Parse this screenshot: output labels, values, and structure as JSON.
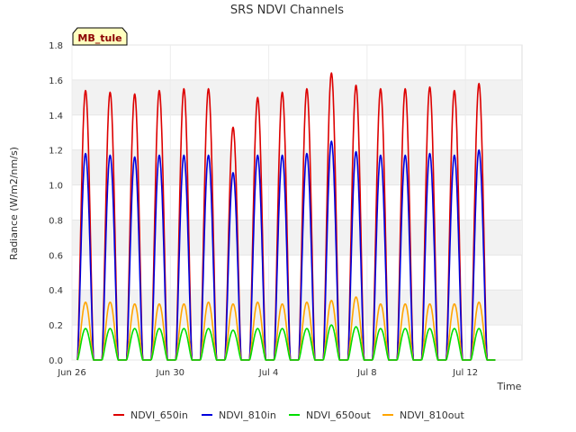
{
  "chart_data": {
    "type": "line",
    "title": "SRS NDVI Channels",
    "xlabel": "Time",
    "ylabel": "Radiance (W/m2/nm/s)",
    "badge": "MB_tule",
    "xlim": [
      0,
      18.3
    ],
    "ylim": [
      0,
      1.8
    ],
    "yticks": [
      "0.0",
      "0.2",
      "0.4",
      "0.6",
      "0.8",
      "1.0",
      "1.2",
      "1.4",
      "1.6",
      "1.8"
    ],
    "xticks": [
      {
        "label": "Jun 26",
        "day": 0
      },
      {
        "label": "Jun 30",
        "day": 4
      },
      {
        "label": "Jul 4",
        "day": 8
      },
      {
        "label": "Jul 8",
        "day": 12
      },
      {
        "label": "Jul 12",
        "day": 16
      }
    ],
    "x_unit": "days after Jun 26",
    "grid": true,
    "legend_position": "bottom",
    "series": [
      {
        "name": "NDVI_650in",
        "color": "#dd0000",
        "daily_peaks": [
          1.54,
          1.53,
          1.52,
          1.54,
          1.55,
          1.55,
          1.33,
          1.5,
          1.53,
          1.55,
          1.64,
          1.57,
          1.55,
          1.55,
          1.56,
          1.54,
          1.58
        ]
      },
      {
        "name": "NDVI_810in",
        "color": "#0000dd",
        "daily_peaks": [
          1.18,
          1.17,
          1.16,
          1.17,
          1.17,
          1.17,
          1.07,
          1.17,
          1.17,
          1.18,
          1.25,
          1.19,
          1.17,
          1.17,
          1.18,
          1.17,
          1.2
        ]
      },
      {
        "name": "NDVI_650out",
        "color": "#00dd00",
        "daily_peaks": [
          0.18,
          0.18,
          0.18,
          0.18,
          0.18,
          0.18,
          0.17,
          0.18,
          0.18,
          0.18,
          0.2,
          0.19,
          0.18,
          0.18,
          0.18,
          0.18,
          0.18
        ]
      },
      {
        "name": "NDVI_810out",
        "color": "#ffa500",
        "daily_peaks": [
          0.33,
          0.33,
          0.32,
          0.32,
          0.32,
          0.33,
          0.32,
          0.33,
          0.32,
          0.33,
          0.34,
          0.36,
          0.32,
          0.32,
          0.32,
          0.32,
          0.33
        ]
      }
    ]
  }
}
